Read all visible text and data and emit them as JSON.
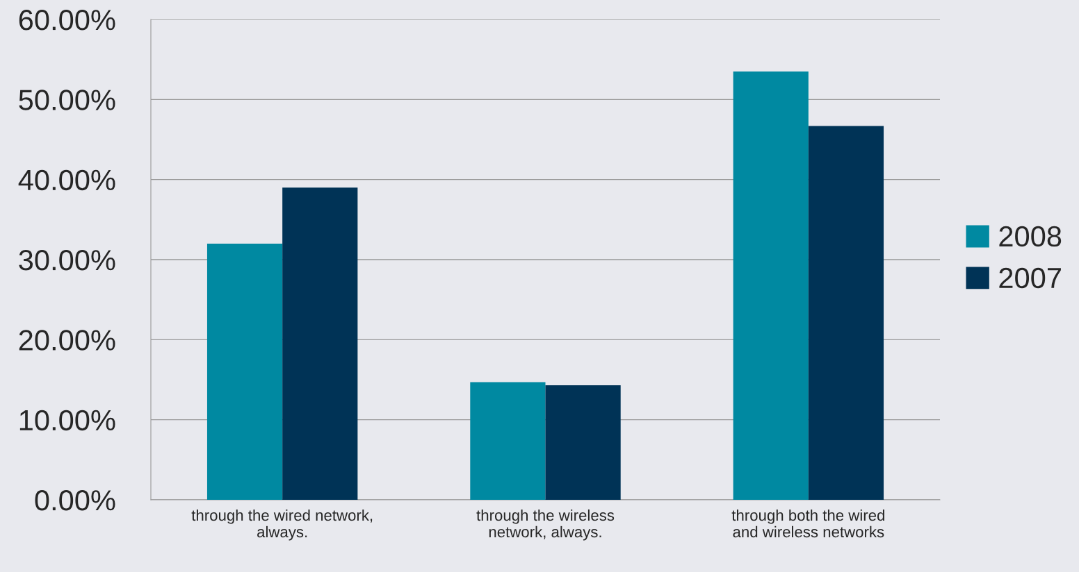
{
  "chart_data": {
    "type": "bar",
    "categories": [
      "through the wired network,\nalways.",
      "through the wireless\nnetwork, always.",
      "through both the wired\nand wireless networks"
    ],
    "series": [
      {
        "name": "2008",
        "color": "#0089a1",
        "values": [
          32,
          14.7,
          53.5
        ]
      },
      {
        "name": "2007",
        "color": "#003356",
        "values": [
          39,
          14.3,
          46.7
        ]
      }
    ],
    "ylim": [
      0,
      60
    ],
    "yticks": [
      {
        "value": 0,
        "label": "0.00%"
      },
      {
        "value": 10,
        "label": "10.00%"
      },
      {
        "value": 20,
        "label": "20.00%"
      },
      {
        "value": 30,
        "label": "30.00%"
      },
      {
        "value": 40,
        "label": "40.00%"
      },
      {
        "value": 50,
        "label": "50.00%"
      },
      {
        "value": 60,
        "label": "60.00%"
      }
    ],
    "grid": "y",
    "legend": "right"
  }
}
